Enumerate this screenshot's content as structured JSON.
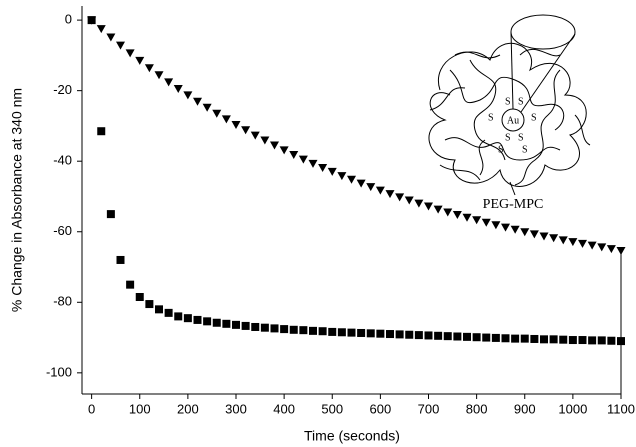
{
  "chart_data": {
    "type": "scatter",
    "xlabel": "Time (seconds)",
    "ylabel": "% Change in Absorbance at 340 nm",
    "x": [
      0,
      20,
      40,
      60,
      80,
      100,
      120,
      140,
      160,
      180,
      200,
      220,
      240,
      260,
      280,
      300,
      320,
      340,
      360,
      380,
      400,
      420,
      440,
      460,
      480,
      500,
      520,
      540,
      560,
      580,
      600,
      620,
      640,
      660,
      680,
      700,
      720,
      740,
      760,
      780,
      800,
      820,
      840,
      860,
      880,
      900,
      920,
      940,
      960,
      980,
      1000,
      1020,
      1040,
      1060,
      1080,
      1100
    ],
    "series": [
      {
        "color": "#000000",
        "marker": "square",
        "values": [
          0,
          -31.5,
          -55,
          -68,
          -75,
          -78.5,
          -80.5,
          -82,
          -83,
          -84,
          -84.5,
          -85,
          -85.4,
          -85.8,
          -86.1,
          -86.4,
          -86.7,
          -87,
          -87.2,
          -87.4,
          -87.6,
          -87.8,
          -87.9,
          -88.1,
          -88.2,
          -88.4,
          -88.5,
          -88.6,
          -88.7,
          -88.8,
          -88.9,
          -89,
          -89.1,
          -89.2,
          -89.3,
          -89.4,
          -89.5,
          -89.6,
          -89.7,
          -89.8,
          -89.9,
          -90,
          -90.1,
          -90.2,
          -90.3,
          -90.3,
          -90.4,
          -90.5,
          -90.5,
          -90.6,
          -90.7,
          -90.7,
          -90.8,
          -90.8,
          -90.9,
          -91
        ]
      },
      {
        "color": "#000000",
        "marker": "triangle-down",
        "values": [
          0,
          -2.4,
          -4.8,
          -7.1,
          -9.3,
          -11.4,
          -13.5,
          -15.5,
          -17.5,
          -19.4,
          -21.2,
          -23,
          -24.7,
          -26.4,
          -28,
          -29.6,
          -31.1,
          -32.6,
          -34,
          -35.4,
          -36.8,
          -38.1,
          -39.4,
          -40.6,
          -41.8,
          -42.9,
          -44.1,
          -45.1,
          -46.2,
          -47.2,
          -48.2,
          -49.2,
          -50.1,
          -51,
          -51.9,
          -52.7,
          -53.6,
          -54.4,
          -55.1,
          -55.9,
          -56.6,
          -57.3,
          -58,
          -58.7,
          -59.3,
          -60,
          -60.6,
          -61.2,
          -61.7,
          -62.3,
          -62.8,
          -63.3,
          -63.8,
          -64.3,
          -64.8,
          -65.3
        ]
      }
    ],
    "xlim": [
      -20,
      1100
    ],
    "xticks": [
      0,
      100,
      200,
      300,
      400,
      500,
      600,
      700,
      800,
      900,
      1000,
      1100
    ],
    "ylim": [
      -106,
      4
    ],
    "yticks": [
      0,
      -20,
      -40,
      -60,
      -80,
      -100
    ],
    "grid": false,
    "inset": {
      "label": "PEG-MPC",
      "core": "Au",
      "sulfur": "S"
    }
  }
}
